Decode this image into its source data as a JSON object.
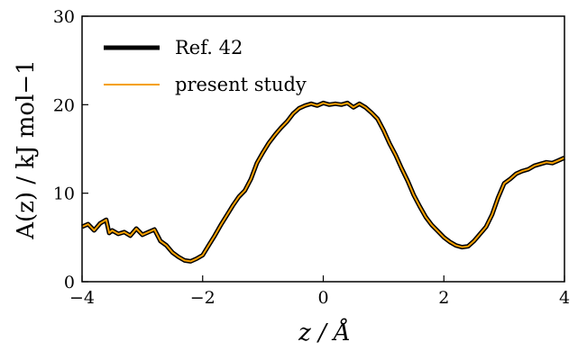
{
  "chart_data": {
    "type": "line",
    "xlabel": "z / Å",
    "ylabel": "A(z) / kJ mol−1",
    "xlim": [
      -4,
      4
    ],
    "ylim": [
      0,
      30
    ],
    "x_ticks": [
      -4,
      -2,
      0,
      2,
      4
    ],
    "x_tick_labels": [
      "−4",
      "−2",
      "0",
      "2",
      "4"
    ],
    "y_ticks": [
      0,
      10,
      20,
      30
    ],
    "y_tick_labels": [
      "0",
      "10",
      "20",
      "30"
    ],
    "grid": false,
    "legend_position": "top-left",
    "series": [
      {
        "name": "Ref. 42",
        "color": "#000000",
        "x": [
          -4.0,
          -3.9,
          -3.8,
          -3.7,
          -3.6,
          -3.55,
          -3.5,
          -3.4,
          -3.3,
          -3.2,
          -3.1,
          -3.0,
          -2.9,
          -2.8,
          -2.7,
          -2.6,
          -2.5,
          -2.4,
          -2.3,
          -2.2,
          -2.1,
          -2.0,
          -1.9,
          -1.8,
          -1.7,
          -1.6,
          -1.5,
          -1.4,
          -1.3,
          -1.2,
          -1.1,
          -1.0,
          -0.9,
          -0.8,
          -0.7,
          -0.6,
          -0.5,
          -0.4,
          -0.3,
          -0.2,
          -0.1,
          0.0,
          0.1,
          0.2,
          0.3,
          0.4,
          0.5,
          0.6,
          0.7,
          0.8,
          0.9,
          1.0,
          1.1,
          1.2,
          1.3,
          1.4,
          1.5,
          1.6,
          1.7,
          1.8,
          1.9,
          2.0,
          2.1,
          2.2,
          2.3,
          2.4,
          2.5,
          2.6,
          2.7,
          2.8,
          2.9,
          3.0,
          3.1,
          3.2,
          3.3,
          3.4,
          3.5,
          3.6,
          3.7,
          3.8,
          3.9,
          4.0
        ],
        "y": [
          6.2,
          6.5,
          5.8,
          6.6,
          7.0,
          5.5,
          5.8,
          5.4,
          5.6,
          5.2,
          6.0,
          5.3,
          5.6,
          5.9,
          4.6,
          4.1,
          3.3,
          2.8,
          2.4,
          2.3,
          2.6,
          3.0,
          4.1,
          5.2,
          6.4,
          7.5,
          8.6,
          9.6,
          10.3,
          11.6,
          13.4,
          14.6,
          15.7,
          16.6,
          17.4,
          18.1,
          19.0,
          19.6,
          19.9,
          20.1,
          19.9,
          20.2,
          20.0,
          20.1,
          20.0,
          20.2,
          19.7,
          20.1,
          19.7,
          19.1,
          18.4,
          17.1,
          15.6,
          14.3,
          12.8,
          11.4,
          9.8,
          8.5,
          7.3,
          6.4,
          5.7,
          5.0,
          4.5,
          4.1,
          3.9,
          4.0,
          4.6,
          5.4,
          6.2,
          7.6,
          9.5,
          11.1,
          11.6,
          12.2,
          12.5,
          12.7,
          13.1,
          13.3,
          13.5,
          13.4,
          13.7,
          14.0
        ]
      },
      {
        "name": "present study",
        "color": "#f5a000",
        "x": [
          -4.0,
          -3.9,
          -3.8,
          -3.7,
          -3.6,
          -3.55,
          -3.5,
          -3.4,
          -3.3,
          -3.2,
          -3.1,
          -3.0,
          -2.9,
          -2.8,
          -2.7,
          -2.6,
          -2.5,
          -2.4,
          -2.3,
          -2.2,
          -2.1,
          -2.0,
          -1.9,
          -1.8,
          -1.7,
          -1.6,
          -1.5,
          -1.4,
          -1.3,
          -1.2,
          -1.1,
          -1.0,
          -0.9,
          -0.8,
          -0.7,
          -0.6,
          -0.5,
          -0.4,
          -0.3,
          -0.2,
          -0.1,
          0.0,
          0.1,
          0.2,
          0.3,
          0.4,
          0.5,
          0.6,
          0.7,
          0.8,
          0.9,
          1.0,
          1.1,
          1.2,
          1.3,
          1.4,
          1.5,
          1.6,
          1.7,
          1.8,
          1.9,
          2.0,
          2.1,
          2.2,
          2.3,
          2.4,
          2.5,
          2.6,
          2.7,
          2.8,
          2.9,
          3.0,
          3.1,
          3.2,
          3.3,
          3.4,
          3.5,
          3.6,
          3.7,
          3.8,
          3.9,
          4.0
        ],
        "y": [
          6.2,
          6.5,
          5.8,
          6.6,
          7.0,
          5.5,
          5.8,
          5.4,
          5.6,
          5.2,
          6.0,
          5.3,
          5.6,
          5.9,
          4.6,
          4.1,
          3.3,
          2.8,
          2.4,
          2.3,
          2.6,
          3.0,
          4.1,
          5.2,
          6.4,
          7.5,
          8.6,
          9.6,
          10.3,
          11.6,
          13.4,
          14.6,
          15.7,
          16.6,
          17.4,
          18.1,
          19.0,
          19.6,
          19.9,
          20.1,
          19.9,
          20.2,
          20.0,
          20.1,
          20.0,
          20.2,
          19.7,
          20.1,
          19.7,
          19.1,
          18.4,
          17.1,
          15.6,
          14.3,
          12.8,
          11.4,
          9.8,
          8.5,
          7.3,
          6.4,
          5.7,
          5.0,
          4.5,
          4.1,
          3.9,
          4.0,
          4.6,
          5.4,
          6.2,
          7.6,
          9.5,
          11.1,
          11.6,
          12.2,
          12.5,
          12.7,
          13.1,
          13.3,
          13.5,
          13.4,
          13.7,
          14.0
        ]
      }
    ]
  }
}
